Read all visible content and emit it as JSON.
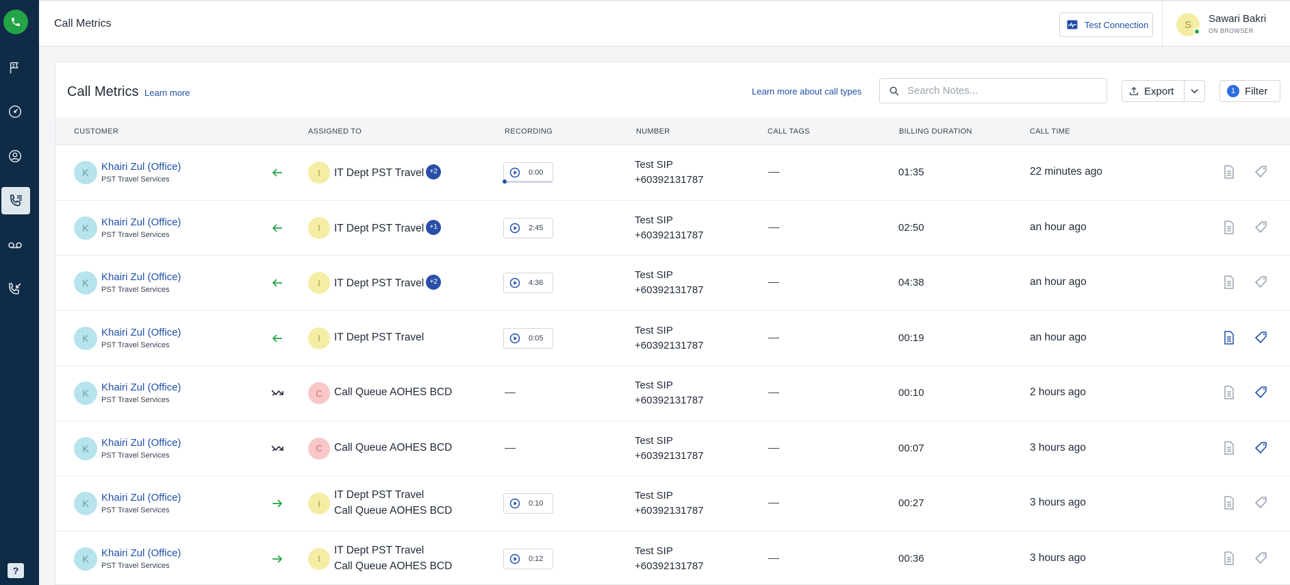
{
  "sidebar": {
    "items": [
      {
        "name": "flag-icon"
      },
      {
        "name": "dashboard-gauge-icon"
      },
      {
        "name": "contacts-icon"
      },
      {
        "name": "call-log-icon",
        "active": true
      },
      {
        "name": "voicemail-icon"
      },
      {
        "name": "callback-icon"
      }
    ],
    "help_label": "?"
  },
  "header": {
    "title": "Call Metrics",
    "test_connection_label": "Test Connection",
    "user": {
      "initial": "S",
      "name": "Sawari Bakri",
      "status": "ON BROWSER"
    }
  },
  "main": {
    "title": "Call Metrics",
    "learn_more": "Learn more",
    "learn_more_call_types": "Learn more about call types",
    "search_placeholder": "Search Notes...",
    "export_label": "Export",
    "filter_label": "Filter",
    "filter_count": "1"
  },
  "table": {
    "columns": {
      "customer": "CUSTOMER",
      "assigned_to": "ASSIGNED TO",
      "recording": "RECORDING",
      "number": "NUMBER",
      "call_tags": "CALL TAGS",
      "billing_duration": "BILLING DURATION",
      "call_time": "CALL TIME"
    },
    "rows": [
      {
        "customer_initial": "K",
        "customer": "Khairi Zul (Office)",
        "company": "PST Travel Services",
        "direction": "inbound",
        "assign_initial": "I",
        "assign_color": "yellow",
        "assigned": "IT Dept PST Travel",
        "assigned_line2": "",
        "extra": "+2",
        "recording": "0:00",
        "recording_progress": 0,
        "number_label": "Test SIP",
        "number": "+60392131787",
        "call_tags": "—",
        "billing": "01:35",
        "call_time": "22 minutes ago",
        "note_active": false,
        "tag_active": false
      },
      {
        "customer_initial": "K",
        "customer": "Khairi Zul (Office)",
        "company": "PST Travel Services",
        "direction": "inbound",
        "assign_initial": "I",
        "assign_color": "yellow",
        "assigned": "IT Dept PST Travel",
        "assigned_line2": "",
        "extra": "+1",
        "recording": "2:45",
        "number_label": "Test SIP",
        "number": "+60392131787",
        "call_tags": "—",
        "billing": "02:50",
        "call_time": "an hour ago",
        "note_active": false,
        "tag_active": false
      },
      {
        "customer_initial": "K",
        "customer": "Khairi Zul (Office)",
        "company": "PST Travel Services",
        "direction": "inbound",
        "assign_initial": "I",
        "assign_color": "yellow",
        "assigned": "IT Dept PST Travel",
        "assigned_line2": "",
        "extra": "+2",
        "recording": "4:36",
        "number_label": "Test SIP",
        "number": "+60392131787",
        "call_tags": "—",
        "billing": "04:38",
        "call_time": "an hour ago",
        "note_active": false,
        "tag_active": false
      },
      {
        "customer_initial": "K",
        "customer": "Khairi Zul (Office)",
        "company": "PST Travel Services",
        "direction": "inbound",
        "assign_initial": "I",
        "assign_color": "yellow",
        "assigned": "IT Dept PST Travel",
        "assigned_line2": "",
        "extra": "",
        "recording": "0:05",
        "number_label": "Test SIP",
        "number": "+60392131787",
        "call_tags": "—",
        "billing": "00:19",
        "call_time": "an hour ago",
        "note_active": true,
        "tag_active": true
      },
      {
        "customer_initial": "K",
        "customer": "Khairi Zul (Office)",
        "company": "PST Travel Services",
        "direction": "missed",
        "assign_initial": "C",
        "assign_color": "pink",
        "assigned": "Call Queue AOHES BCD",
        "assigned_line2": "",
        "extra": "",
        "recording": "—",
        "number_label": "Test SIP",
        "number": "+60392131787",
        "call_tags": "—",
        "billing": "00:10",
        "call_time": "2 hours ago",
        "note_active": false,
        "tag_active": true
      },
      {
        "customer_initial": "K",
        "customer": "Khairi Zul (Office)",
        "company": "PST Travel Services",
        "direction": "missed",
        "assign_initial": "C",
        "assign_color": "pink",
        "assigned": "Call Queue AOHES BCD",
        "assigned_line2": "",
        "extra": "",
        "recording": "—",
        "number_label": "Test SIP",
        "number": "+60392131787",
        "call_tags": "—",
        "billing": "00:07",
        "call_time": "3 hours ago",
        "note_active": false,
        "tag_active": true
      },
      {
        "customer_initial": "K",
        "customer": "Khairi Zul (Office)",
        "company": "PST Travel Services",
        "direction": "outbound",
        "assign_initial": "I",
        "assign_color": "yellow",
        "assigned": "IT Dept PST Travel",
        "assigned_line2": "Call Queue AOHES BCD",
        "extra": "",
        "recording": "0:10",
        "number_label": "Test SIP",
        "number": "+60392131787",
        "call_tags": "—",
        "billing": "00:27",
        "call_time": "3 hours ago",
        "note_active": false,
        "tag_active": false
      },
      {
        "customer_initial": "K",
        "customer": "Khairi Zul (Office)",
        "company": "PST Travel Services",
        "direction": "outbound",
        "assign_initial": "I",
        "assign_color": "yellow",
        "assigned": "IT Dept PST Travel",
        "assigned_line2": "Call Queue AOHES BCD",
        "extra": "",
        "recording": "0:12",
        "number_label": "Test SIP",
        "number": "+60392131787",
        "call_tags": "—",
        "billing": "00:36",
        "call_time": "3 hours ago",
        "note_active": false,
        "tag_active": false
      }
    ]
  },
  "colors": {
    "sidebar_bg": "#0f2b46",
    "accent_blue": "#1f4fa8",
    "green": "#22a447",
    "badge_blue": "#2a4fa8"
  }
}
